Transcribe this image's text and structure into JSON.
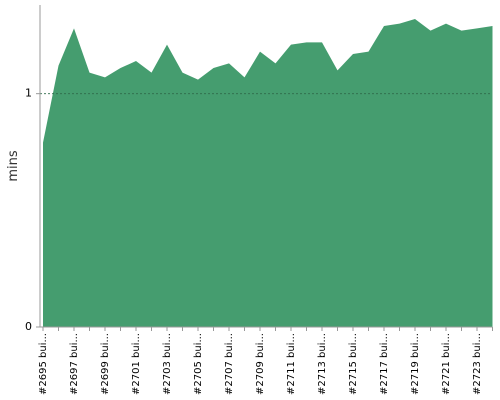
{
  "chart_data": {
    "type": "area",
    "y_label": "mins",
    "categories": [
      "#2695 bui...",
      null,
      "#2697 bui...",
      null,
      "#2699 bui...",
      null,
      "#2701 bui...",
      null,
      "#2703 bui...",
      null,
      "#2705 bui...",
      null,
      "#2707 bui...",
      null,
      "#2709 bui...",
      null,
      "#2711 bui...",
      null,
      "#2713 bui...",
      null,
      "#2715 bui...",
      null,
      "#2717 bui...",
      null,
      "#2719 bui...",
      null,
      "#2721 bui...",
      null,
      "#2723 bui...",
      null
    ],
    "values": [
      0.79,
      1.12,
      1.28,
      1.09,
      1.07,
      1.11,
      1.14,
      1.09,
      1.21,
      1.09,
      1.06,
      1.11,
      1.13,
      1.07,
      1.18,
      1.13,
      1.21,
      1.22,
      1.22,
      1.1,
      1.17,
      1.18,
      1.29,
      1.3,
      1.32,
      1.27,
      1.3,
      1.27,
      1.28,
      1.29
    ],
    "color": "#459d6f",
    "ylim": [
      0,
      1.38
    ],
    "yticks": [
      0,
      1
    ],
    "grid": true
  }
}
